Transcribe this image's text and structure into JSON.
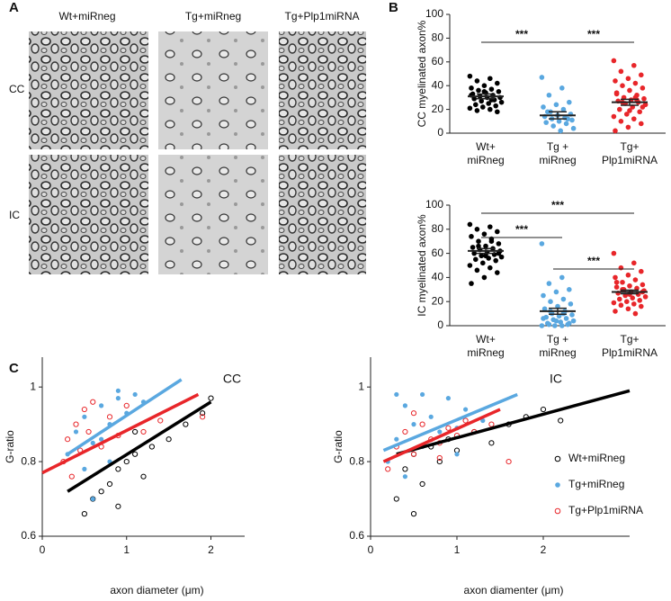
{
  "figure_labels": {
    "A": "A",
    "B": "B",
    "C": "C"
  },
  "micrographs": {
    "columns": [
      "Wt+miRneg",
      "Tg+miRneg",
      "Tg+Plp1miRNA"
    ],
    "rows": [
      "CC",
      "IC"
    ]
  },
  "chart_data": [
    {
      "type": "strip",
      "y_label": "CC myelinated axon%",
      "categories": [
        [
          "Wt+",
          "miRneg"
        ],
        [
          "Tg +",
          "miRneg"
        ],
        [
          "Tg+",
          "Plp1miRNA"
        ]
      ],
      "ylim": [
        0,
        100
      ],
      "yticks": [
        0,
        20,
        40,
        60,
        80,
        100
      ],
      "series": [
        {
          "name": "Wt+miRneg",
          "color": "#000000",
          "values": [
            48,
            46,
            44,
            42,
            40,
            38,
            37,
            36,
            35,
            34,
            33,
            32,
            31,
            30,
            30,
            29,
            28,
            27,
            26,
            25,
            24,
            23,
            22,
            21,
            20,
            19,
            18,
            35,
            32,
            28
          ],
          "mean": 31,
          "sem": 2
        },
        {
          "name": "Tg+miRneg",
          "color": "#5aa8e0",
          "values": [
            47,
            38,
            32,
            26,
            24,
            22,
            20,
            18,
            16,
            15,
            14,
            13,
            12,
            11,
            10,
            9,
            8,
            6,
            4,
            2,
            18,
            12
          ],
          "mean": 15,
          "sem": 3
        },
        {
          "name": "Tg+Plp1miRNA",
          "color": "#e8262a",
          "values": [
            61,
            57,
            52,
            49,
            46,
            44,
            42,
            40,
            38,
            36,
            34,
            32,
            30,
            29,
            28,
            27,
            26,
            25,
            24,
            22,
            20,
            18,
            16,
            14,
            12,
            10,
            8,
            5,
            2,
            30,
            26,
            22,
            19,
            33,
            28
          ],
          "mean": 26,
          "sem": 2.5
        }
      ],
      "annotations": [
        {
          "from": 0,
          "to": 1,
          "label": "***"
        },
        {
          "from": 1,
          "to": 2,
          "label": "***"
        }
      ]
    },
    {
      "type": "strip",
      "y_label": "IC myelinated axon%",
      "categories": [
        [
          "Wt+",
          "miRneg"
        ],
        [
          "Tg +",
          "miRneg"
        ],
        [
          "Tg+",
          "Plp1miRNA"
        ]
      ],
      "ylim": [
        0,
        100
      ],
      "yticks": [
        0,
        20,
        40,
        60,
        80,
        100
      ],
      "series": [
        {
          "name": "Wt+miRneg",
          "color": "#000000",
          "values": [
            84,
            82,
            80,
            78,
            76,
            74,
            72,
            70,
            68,
            66,
            65,
            64,
            63,
            62,
            61,
            60,
            59,
            58,
            57,
            56,
            55,
            54,
            52,
            50,
            48,
            46,
            44,
            40,
            35,
            70,
            66,
            60,
            58
          ],
          "mean": 62,
          "sem": 2
        },
        {
          "name": "Tg+miRneg",
          "color": "#5aa8e0",
          "values": [
            68,
            40,
            35,
            30,
            28,
            25,
            22,
            20,
            18,
            16,
            14,
            12,
            10,
            9,
            8,
            7,
            6,
            5,
            4,
            3,
            2,
            1,
            0,
            0,
            0,
            1,
            2,
            4,
            6,
            10,
            12
          ],
          "mean": 12,
          "sem": 2.5
        },
        {
          "name": "Tg+Plp1miRNA",
          "color": "#e8262a",
          "values": [
            60,
            52,
            48,
            45,
            42,
            40,
            38,
            36,
            34,
            33,
            32,
            31,
            30,
            29,
            28,
            27,
            26,
            25,
            24,
            23,
            22,
            21,
            20,
            19,
            18,
            17,
            16,
            14,
            12,
            10,
            30,
            28,
            26,
            36
          ],
          "mean": 28,
          "sem": 1.5
        }
      ],
      "annotations": [
        {
          "from": 0,
          "to": 2,
          "label": "***"
        },
        {
          "from": 0,
          "to": 1,
          "label": "***"
        },
        {
          "from": 1,
          "to": 2,
          "label": "***"
        }
      ]
    },
    {
      "type": "scatter",
      "title": "CC",
      "x_label": "axon diameter (μm)",
      "y_label": "G-ratio",
      "xlim": [
        0,
        2.4
      ],
      "xticks": [
        0,
        1,
        2
      ],
      "ylim": [
        0.6,
        1.08
      ],
      "yticks": [
        0.6,
        0.8,
        1
      ],
      "series": [
        {
          "name": "Wt+miRneg",
          "color": "#000000",
          "marker": "hollow",
          "x": [
            0.5,
            0.6,
            0.7,
            0.8,
            0.9,
            1.0,
            1.1,
            1.2,
            1.3,
            1.5,
            1.7,
            1.9,
            2.0,
            0.9,
            1.1
          ],
          "values": [
            0.66,
            0.7,
            0.72,
            0.74,
            0.78,
            0.8,
            0.82,
            0.76,
            0.84,
            0.86,
            0.9,
            0.93,
            0.97,
            0.68,
            0.88
          ],
          "fit": {
            "x": [
              0.3,
              2.0
            ],
            "y": [
              0.72,
              0.96
            ]
          }
        },
        {
          "name": "Tg+miRneg",
          "color": "#5aa8e0",
          "marker": "filled",
          "x": [
            0.3,
            0.4,
            0.5,
            0.6,
            0.7,
            0.8,
            0.9,
            1.0,
            1.1,
            0.5,
            0.7,
            0.9,
            0.6,
            0.8,
            1.2
          ],
          "values": [
            0.82,
            0.88,
            0.92,
            0.85,
            0.95,
            0.9,
            0.97,
            0.93,
            0.98,
            0.78,
            0.86,
            0.99,
            0.7,
            0.8,
            0.96
          ],
          "fit": {
            "x": [
              0.3,
              1.65
            ],
            "y": [
              0.82,
              1.02
            ]
          }
        },
        {
          "name": "Tg+Plp1miRNA",
          "color": "#e8262a",
          "marker": "hollow",
          "x": [
            0.25,
            0.3,
            0.35,
            0.4,
            0.45,
            0.5,
            0.55,
            0.6,
            0.7,
            0.8,
            0.9,
            1.0,
            1.2,
            1.4,
            1.9
          ],
          "values": [
            0.8,
            0.86,
            0.76,
            0.9,
            0.83,
            0.94,
            0.88,
            0.96,
            0.84,
            0.92,
            0.87,
            0.95,
            0.88,
            0.91,
            0.92
          ],
          "fit": {
            "x": [
              0.0,
              1.85
            ],
            "y": [
              0.77,
              0.98
            ]
          }
        }
      ]
    },
    {
      "type": "scatter",
      "title": "IC",
      "x_label": "axon diamenter (μm)",
      "y_label": "G-ratio",
      "legend": "lower right",
      "xlim": [
        0,
        3
      ],
      "xticks": [
        0,
        1,
        2
      ],
      "ylim": [
        0.6,
        1.08
      ],
      "yticks": [
        0.6,
        0.8,
        1
      ],
      "series": [
        {
          "name": "Wt+miRneg",
          "color": "#000000",
          "marker": "hollow",
          "x": [
            0.3,
            0.4,
            0.5,
            0.6,
            0.7,
            0.8,
            0.9,
            1.0,
            1.2,
            1.4,
            1.6,
            1.8,
            2.0,
            2.2,
            0.5
          ],
          "values": [
            0.7,
            0.78,
            0.82,
            0.74,
            0.84,
            0.8,
            0.86,
            0.83,
            0.88,
            0.85,
            0.9,
            0.92,
            0.94,
            0.91,
            0.66
          ],
          "fit": {
            "x": [
              0.3,
              3.0
            ],
            "y": [
              0.82,
              0.99
            ]
          }
        },
        {
          "name": "Tg+miRneg",
          "color": "#5aa8e0",
          "marker": "filled",
          "x": [
            0.2,
            0.3,
            0.4,
            0.5,
            0.6,
            0.7,
            0.8,
            0.9,
            1.0,
            1.1,
            0.4,
            0.6,
            1.3,
            0.3,
            1.0
          ],
          "values": [
            0.8,
            0.86,
            0.95,
            0.9,
            0.84,
            0.92,
            0.88,
            0.97,
            0.89,
            0.94,
            0.76,
            0.98,
            0.91,
            0.98,
            0.82
          ],
          "fit": {
            "x": [
              0.15,
              1.7
            ],
            "y": [
              0.83,
              0.98
            ]
          }
        },
        {
          "name": "Tg+Plp1miRNA",
          "color": "#e8262a",
          "marker": "hollow",
          "x": [
            0.2,
            0.3,
            0.4,
            0.5,
            0.6,
            0.7,
            0.8,
            0.9,
            1.0,
            1.2,
            1.4,
            1.6,
            0.5,
            0.8,
            1.1
          ],
          "values": [
            0.78,
            0.84,
            0.88,
            0.82,
            0.9,
            0.86,
            0.85,
            0.89,
            0.87,
            0.88,
            0.9,
            0.8,
            0.93,
            0.81,
            0.91
          ],
          "fit": {
            "x": [
              0.15,
              1.5
            ],
            "y": [
              0.8,
              0.94
            ]
          }
        }
      ]
    }
  ]
}
